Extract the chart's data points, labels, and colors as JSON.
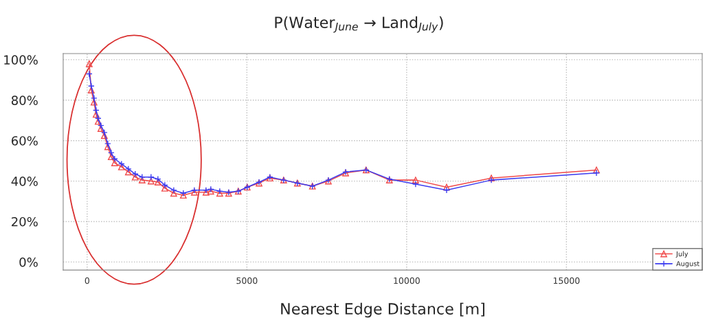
{
  "chart_data": {
    "type": "line",
    "title": "P(Water$_{June}$ → Land$_{July}$)",
    "xlabel": "Nearest Edge Distance [m]",
    "xlim": [
      -750,
      19250
    ],
    "xticks": [
      0,
      5000,
      10000,
      15000
    ],
    "ylim": [
      -4,
      103
    ],
    "yticks": [
      {
        "value": 0,
        "label": "0%"
      },
      {
        "value": 20,
        "label": "20%"
      },
      {
        "value": 40,
        "label": "40%"
      },
      {
        "value": 60,
        "label": "60%"
      },
      {
        "value": 80,
        "label": "80%"
      },
      {
        "value": 100,
        "label": "100%"
      }
    ],
    "grid": true,
    "legend": "bottom right",
    "series": [
      {
        "name": "July",
        "color": "#f04a4a",
        "marker": "triangle",
        "x": [
          65,
          129,
          215,
          280,
          344,
          430,
          538,
          645,
          753,
          860,
          1075,
          1290,
          1505,
          1720,
          2000,
          2215,
          2430,
          2710,
          3010,
          3355,
          3720,
          3870,
          4150,
          4430,
          4730,
          5010,
          5380,
          5720,
          6150,
          6580,
          7050,
          7550,
          8090,
          8730,
          9460,
          10280,
          11250,
          12650,
          15940
        ],
        "values": [
          98,
          85,
          79,
          73,
          69.5,
          66,
          62.5,
          57,
          52,
          49,
          47,
          44.5,
          42,
          40.5,
          40,
          39.5,
          36.5,
          34,
          33,
          34.5,
          34.5,
          35,
          34,
          34,
          35,
          37,
          39,
          41.5,
          40.5,
          39,
          37.5,
          40,
          44,
          45.5,
          40.5,
          40.5,
          37,
          41.5,
          45.5
        ]
      },
      {
        "name": "August",
        "color": "#3c3cf0",
        "marker": "cross",
        "x": [
          65,
          129,
          215,
          280,
          344,
          430,
          538,
          645,
          753,
          860,
          1075,
          1290,
          1505,
          1720,
          2000,
          2215,
          2430,
          2710,
          3010,
          3355,
          3720,
          3870,
          4150,
          4430,
          4730,
          5010,
          5380,
          5720,
          6150,
          6580,
          7050,
          7550,
          8090,
          8730,
          9460,
          10280,
          11250,
          12650,
          15940
        ],
        "values": [
          93,
          87,
          81,
          75,
          71,
          67.5,
          64,
          58.5,
          54,
          51,
          48.5,
          46,
          43.5,
          42,
          42,
          41,
          38,
          35.5,
          34,
          35.5,
          35.5,
          36,
          35,
          34.5,
          35,
          37,
          39.5,
          42,
          40.5,
          39,
          37.5,
          40.5,
          44.5,
          45.5,
          41,
          38.5,
          35.5,
          40.5,
          44
        ]
      }
    ]
  }
}
